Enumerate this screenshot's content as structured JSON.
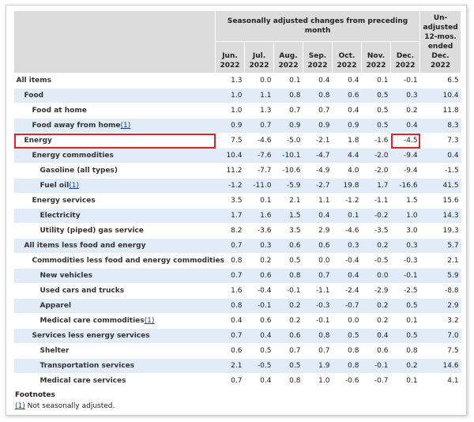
{
  "table": {
    "group_header": "Seasonally adjusted changes from preceding month",
    "columns": [
      "Jun. 2022",
      "Jul. 2022",
      "Aug. 2022",
      "Sep. 2022",
      "Oct. 2022",
      "Nov. 2022",
      "Dec. 2022"
    ],
    "unadjusted_header": "Un-adjusted 12-mos. ended Dec. 2022",
    "rows": [
      {
        "label": "All items",
        "values": [
          "1.3",
          "0.0",
          "0.1",
          "0.4",
          "0.4",
          "0.1",
          "-0.1",
          "6.5"
        ]
      },
      {
        "label": "Food",
        "values": [
          "1.0",
          "1.1",
          "0.8",
          "0.8",
          "0.6",
          "0.5",
          "0.3",
          "10.4"
        ]
      },
      {
        "label": "Food at home",
        "values": [
          "1.0",
          "1.3",
          "0.7",
          "0.7",
          "0.4",
          "0.5",
          "0.2",
          "11.8"
        ]
      },
      {
        "label": "Food away from home",
        "note": "(1)",
        "values": [
          "0.9",
          "0.7",
          "0.9",
          "0.9",
          "0.9",
          "0.5",
          "0.4",
          "8.3"
        ]
      },
      {
        "label": "Energy",
        "values": [
          "7.5",
          "-4.6",
          "-5.0",
          "-2.1",
          "1.8",
          "-1.6",
          "-4.5",
          "7.3"
        ]
      },
      {
        "label": "Energy commodities",
        "values": [
          "10.4",
          "-7.6",
          "-10.1",
          "-4.7",
          "4.4",
          "-2.0",
          "-9.4",
          "0.4"
        ]
      },
      {
        "label": "Gasoline (all types)",
        "values": [
          "11.2",
          "-7.7",
          "-10.6",
          "-4.9",
          "4.0",
          "-2.0",
          "-9.4",
          "-1.5"
        ]
      },
      {
        "label": "Fuel oil",
        "note": "(1)",
        "values": [
          "-1.2",
          "-11.0",
          "-5.9",
          "-2.7",
          "19.8",
          "1.7",
          "-16.6",
          "41.5"
        ]
      },
      {
        "label": "Energy services",
        "values": [
          "3.5",
          "0.1",
          "2.1",
          "1.1",
          "-1.2",
          "-1.1",
          "1.5",
          "15.6"
        ]
      },
      {
        "label": "Electricity",
        "values": [
          "1.7",
          "1.6",
          "1.5",
          "0.4",
          "0.1",
          "-0.2",
          "1.0",
          "14.3"
        ]
      },
      {
        "label": "Utility (piped) gas service",
        "values": [
          "8.2",
          "-3.6",
          "3.5",
          "2.9",
          "-4.6",
          "-3.5",
          "3.0",
          "19.3"
        ]
      },
      {
        "label": "All items less food and energy",
        "values": [
          "0.7",
          "0.3",
          "0.6",
          "0.6",
          "0.3",
          "0.2",
          "0.3",
          "5.7"
        ]
      },
      {
        "label": "Commodities less food and energy commodities",
        "values": [
          "0.8",
          "0.2",
          "0.5",
          "0.0",
          "-0.4",
          "-0.5",
          "-0.3",
          "2.1"
        ]
      },
      {
        "label": "New vehicles",
        "values": [
          "0.7",
          "0.6",
          "0.8",
          "0.7",
          "0.4",
          "0.0",
          "-0.1",
          "5.9"
        ]
      },
      {
        "label": "Used cars and trucks",
        "values": [
          "1.6",
          "-0.4",
          "-0.1",
          "-1.1",
          "-2.4",
          "-2.9",
          "-2.5",
          "-8.8"
        ]
      },
      {
        "label": "Apparel",
        "values": [
          "0.8",
          "-0.1",
          "0.2",
          "-0.3",
          "-0.7",
          "0.2",
          "0.5",
          "2.9"
        ]
      },
      {
        "label": "Medical care commodities",
        "note": "(1)",
        "values": [
          "0.4",
          "0.6",
          "0.2",
          "-0.1",
          "0.0",
          "0.2",
          "0.1",
          "3.2"
        ]
      },
      {
        "label": "Services less energy services",
        "values": [
          "0.7",
          "0.4",
          "0.6",
          "0.8",
          "0.5",
          "0.4",
          "0.5",
          "7.0"
        ]
      },
      {
        "label": "Shelter",
        "values": [
          "0.6",
          "0.5",
          "0.7",
          "0.7",
          "0.8",
          "0.6",
          "0.8",
          "7.5"
        ]
      },
      {
        "label": "Transportation services",
        "values": [
          "2.1",
          "-0.5",
          "0.5",
          "1.9",
          "0.8",
          "-0.1",
          "0.2",
          "14.6"
        ]
      },
      {
        "label": "Medical care services",
        "values": [
          "0.7",
          "0.4",
          "0.8",
          "1.0",
          "-0.6",
          "-0.7",
          "0.1",
          "4.1"
        ]
      }
    ]
  },
  "footnotes": {
    "title": "Footnotes",
    "items": [
      {
        "ref": "(1)",
        "text": "Not seasonally adjusted."
      }
    ]
  }
}
